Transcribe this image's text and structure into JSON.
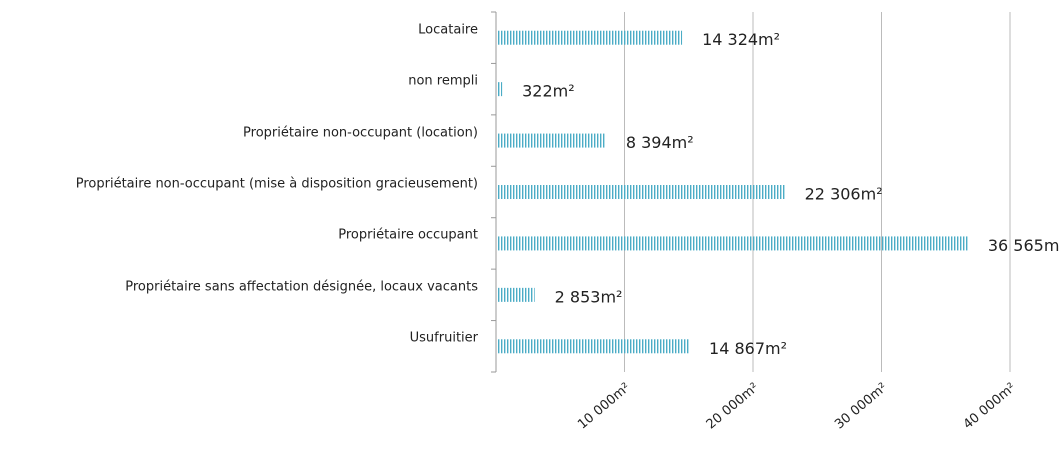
{
  "chart_data": {
    "type": "barh",
    "categories": [
      "Locataire",
      "non rempli",
      "Propriétaire non-occupant (location)",
      "Propriétaire non-occupant (mise à disposition gracieusement)",
      "Propriétaire occupant",
      "Propriétaire sans affectation désignée, locaux vacants",
      "Usufruitier"
    ],
    "values": [
      14324,
      322,
      8394,
      22306,
      36565,
      2853,
      14867
    ],
    "value_labels": [
      "14 324m²",
      "322m²",
      "8 394m²",
      "22 306m²",
      "36 565m²",
      "2 853m²",
      "14 867m²"
    ],
    "color": "#4bacc6",
    "xlim": [
      0,
      40000
    ],
    "xticks": [
      {
        "value": 10000,
        "label": "10 000m²"
      },
      {
        "value": 20000,
        "label": "20 000m²"
      },
      {
        "value": 30000,
        "label": "30 000m²"
      },
      {
        "value": 40000,
        "label": "40 000m²"
      }
    ],
    "grid": true
  }
}
